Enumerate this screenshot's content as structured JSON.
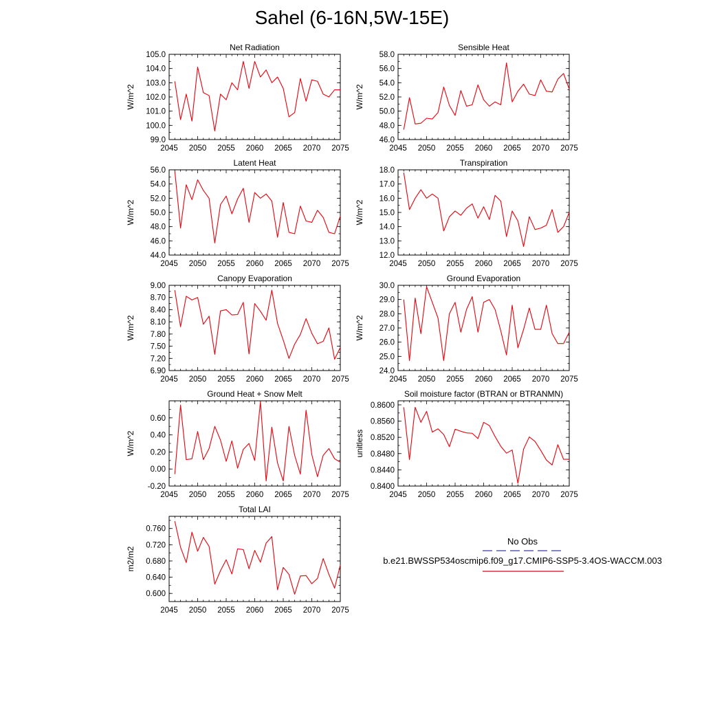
{
  "figure": {
    "title": "Sahel (6-16N,5W-15E)",
    "line_color": "#e8000b",
    "x_ticks": [
      "2045",
      "2050",
      "2055",
      "2060",
      "2065",
      "2070",
      "2075"
    ]
  },
  "legend": {
    "obs_label": "No Obs",
    "obs_color": "#3c3ca0",
    "case_label": "b.e21.BWSSP534oscmip6.f09_g17.CMIP6-SSP5-3.4OS-WACCM.003",
    "case_color": "#e8000b"
  },
  "chart_data": [
    {
      "type": "line",
      "title": "Net Radiation",
      "ylabel": "W/m^2",
      "xlim": [
        2045,
        2075
      ],
      "ylim": [
        99.0,
        105.0
      ],
      "yticks": [
        99.0,
        100.0,
        101.0,
        102.0,
        103.0,
        104.0,
        105.0
      ],
      "ytick_labels": [
        "99.0",
        "100.0",
        "101.0",
        "102.0",
        "103.0",
        "104.0",
        "105.0"
      ],
      "x": [
        2046,
        2047,
        2048,
        2049,
        2050,
        2051,
        2052,
        2053,
        2054,
        2055,
        2056,
        2057,
        2058,
        2059,
        2060,
        2061,
        2062,
        2063,
        2064,
        2065,
        2066,
        2067,
        2068,
        2069,
        2070,
        2071,
        2072,
        2073,
        2074,
        2075
      ],
      "values": [
        103.1,
        100.4,
        102.2,
        100.3,
        104.1,
        102.3,
        102.1,
        99.6,
        102.2,
        101.8,
        103.0,
        102.5,
        104.5,
        102.6,
        104.5,
        103.4,
        103.9,
        103.0,
        103.4,
        102.6,
        100.6,
        100.9,
        103.3,
        101.7,
        103.2,
        103.1,
        102.2,
        102.0,
        102.5,
        102.5
      ]
    },
    {
      "type": "line",
      "title": "Sensible Heat",
      "ylabel": "W/m^2",
      "xlim": [
        2045,
        2075
      ],
      "ylim": [
        46.0,
        58.0
      ],
      "yticks": [
        46.0,
        48.0,
        50.0,
        52.0,
        54.0,
        56.0,
        58.0
      ],
      "ytick_labels": [
        "46.0",
        "48.0",
        "50.0",
        "52.0",
        "54.0",
        "56.0",
        "58.0"
      ],
      "x": [
        2046,
        2047,
        2048,
        2049,
        2050,
        2051,
        2052,
        2053,
        2054,
        2055,
        2056,
        2057,
        2058,
        2059,
        2060,
        2061,
        2062,
        2063,
        2064,
        2065,
        2066,
        2067,
        2068,
        2069,
        2070,
        2071,
        2072,
        2073,
        2074,
        2075
      ],
      "values": [
        47.4,
        51.9,
        48.2,
        48.3,
        49.0,
        48.9,
        49.8,
        53.4,
        50.8,
        49.4,
        52.9,
        50.7,
        50.9,
        53.7,
        51.6,
        50.7,
        51.3,
        50.9,
        56.8,
        51.3,
        52.8,
        53.8,
        52.4,
        52.2,
        54.4,
        52.8,
        52.7,
        54.5,
        55.3,
        53.1
      ]
    },
    {
      "type": "line",
      "title": "Latent Heat",
      "ylabel": "W/m^2",
      "xlim": [
        2045,
        2075
      ],
      "ylim": [
        44.0,
        56.0
      ],
      "yticks": [
        44.0,
        46.0,
        48.0,
        50.0,
        52.0,
        54.0,
        56.0
      ],
      "ytick_labels": [
        "44.0",
        "46.0",
        "48.0",
        "50.0",
        "52.0",
        "54.0",
        "56.0"
      ],
      "x": [
        2046,
        2047,
        2048,
        2049,
        2050,
        2051,
        2052,
        2053,
        2054,
        2055,
        2056,
        2057,
        2058,
        2059,
        2060,
        2061,
        2062,
        2063,
        2064,
        2065,
        2066,
        2067,
        2068,
        2069,
        2070,
        2071,
        2072,
        2073,
        2074,
        2075
      ],
      "values": [
        55.8,
        47.8,
        53.9,
        51.8,
        54.6,
        53.1,
        52.0,
        45.7,
        51.1,
        52.3,
        49.8,
        51.9,
        53.4,
        48.6,
        52.8,
        52.0,
        52.6,
        51.6,
        46.5,
        51.4,
        47.2,
        47.0,
        50.9,
        48.8,
        48.6,
        50.3,
        49.3,
        47.2,
        47.0,
        49.5
      ]
    },
    {
      "type": "line",
      "title": "Transpiration",
      "ylabel": "W/m^2",
      "xlim": [
        2045,
        2075
      ],
      "ylim": [
        12.0,
        18.0
      ],
      "yticks": [
        12.0,
        13.0,
        14.0,
        15.0,
        16.0,
        17.0,
        18.0
      ],
      "ytick_labels": [
        "12.0",
        "13.0",
        "14.0",
        "15.0",
        "16.0",
        "17.0",
        "18.0"
      ],
      "x": [
        2046,
        2047,
        2048,
        2049,
        2050,
        2051,
        2052,
        2053,
        2054,
        2055,
        2056,
        2057,
        2058,
        2059,
        2060,
        2061,
        2062,
        2063,
        2064,
        2065,
        2066,
        2067,
        2068,
        2069,
        2070,
        2071,
        2072,
        2073,
        2074,
        2075
      ],
      "values": [
        17.8,
        15.2,
        16.0,
        16.6,
        16.0,
        16.3,
        16.0,
        13.7,
        14.7,
        15.1,
        14.8,
        15.3,
        15.6,
        14.6,
        15.4,
        14.5,
        16.2,
        15.8,
        13.3,
        15.1,
        14.4,
        12.6,
        14.7,
        13.8,
        13.9,
        14.1,
        15.2,
        13.6,
        14.0,
        15.0
      ]
    },
    {
      "type": "line",
      "title": "Canopy Evaporation",
      "ylabel": "W/m^2",
      "xlim": [
        2045,
        2075
      ],
      "ylim": [
        6.9,
        9.0
      ],
      "yticks": [
        6.9,
        7.2,
        7.5,
        7.8,
        8.1,
        8.4,
        8.7,
        9.0
      ],
      "ytick_labels": [
        "6.90",
        "7.20",
        "7.50",
        "7.80",
        "8.10",
        "8.40",
        "8.70",
        "9.00"
      ],
      "x": [
        2046,
        2047,
        2048,
        2049,
        2050,
        2051,
        2052,
        2053,
        2054,
        2055,
        2056,
        2057,
        2058,
        2059,
        2060,
        2061,
        2062,
        2063,
        2064,
        2065,
        2066,
        2067,
        2068,
        2069,
        2070,
        2071,
        2072,
        2073,
        2074,
        2075
      ],
      "values": [
        8.88,
        7.98,
        8.73,
        8.64,
        8.7,
        8.04,
        8.24,
        7.3,
        8.37,
        8.4,
        8.27,
        8.28,
        8.58,
        7.31,
        8.55,
        8.36,
        8.14,
        8.88,
        8.06,
        7.65,
        7.2,
        7.55,
        7.79,
        8.18,
        7.82,
        7.56,
        7.62,
        7.95,
        7.18,
        7.47
      ]
    },
    {
      "type": "line",
      "title": "Ground Evaporation",
      "ylabel": "W/m^2",
      "xlim": [
        2045,
        2075
      ],
      "ylim": [
        24.0,
        30.0
      ],
      "yticks": [
        24.0,
        25.0,
        26.0,
        27.0,
        28.0,
        29.0,
        30.0
      ],
      "ytick_labels": [
        "24.0",
        "25.0",
        "26.0",
        "27.0",
        "28.0",
        "29.0",
        "30.0"
      ],
      "x": [
        2046,
        2047,
        2048,
        2049,
        2050,
        2051,
        2052,
        2053,
        2054,
        2055,
        2056,
        2057,
        2058,
        2059,
        2060,
        2061,
        2062,
        2063,
        2064,
        2065,
        2066,
        2067,
        2068,
        2069,
        2070,
        2071,
        2072,
        2073,
        2074,
        2075
      ],
      "values": [
        29.0,
        24.7,
        29.1,
        26.6,
        29.9,
        28.8,
        27.7,
        24.7,
        28.0,
        28.8,
        26.7,
        28.3,
        29.2,
        26.7,
        28.8,
        29.0,
        28.3,
        26.8,
        25.1,
        28.6,
        25.6,
        26.9,
        28.4,
        26.9,
        26.9,
        28.6,
        26.6,
        25.9,
        25.9,
        26.7
      ]
    },
    {
      "type": "line",
      "title": "Ground Heat + Snow Melt",
      "ylabel": "W/m^2",
      "xlim": [
        2045,
        2075
      ],
      "ylim": [
        -0.2,
        0.8
      ],
      "yticks": [
        -0.2,
        0.0,
        0.2,
        0.4,
        0.6
      ],
      "ytick_labels": [
        "-0.20",
        "0.00",
        "0.20",
        "0.40",
        "0.60"
      ],
      "x": [
        2046,
        2047,
        2048,
        2049,
        2050,
        2051,
        2052,
        2053,
        2054,
        2055,
        2056,
        2057,
        2058,
        2059,
        2060,
        2061,
        2062,
        2063,
        2064,
        2065,
        2066,
        2067,
        2068,
        2069,
        2070,
        2071,
        2072,
        2073,
        2074,
        2075
      ],
      "values": [
        -0.06,
        0.75,
        0.11,
        0.12,
        0.44,
        0.11,
        0.24,
        0.5,
        0.34,
        0.09,
        0.33,
        0.01,
        0.23,
        0.3,
        0.1,
        0.79,
        -0.14,
        0.49,
        0.07,
        -0.14,
        0.5,
        0.16,
        -0.06,
        0.69,
        0.17,
        -0.09,
        0.16,
        0.24,
        0.12,
        0.08
      ]
    },
    {
      "type": "line",
      "title": "Soil moisture factor (BTRAN or BTRANMN)",
      "ylabel": "unitless",
      "xlim": [
        2045,
        2075
      ],
      "ylim": [
        0.84,
        0.861
      ],
      "yticks": [
        0.84,
        0.844,
        0.848,
        0.852,
        0.856,
        0.86
      ],
      "ytick_labels": [
        "0.8400",
        "0.8440",
        "0.8480",
        "0.8520",
        "0.8560",
        "0.8600"
      ],
      "x": [
        2046,
        2047,
        2048,
        2049,
        2050,
        2051,
        2052,
        2053,
        2054,
        2055,
        2056,
        2057,
        2058,
        2059,
        2060,
        2061,
        2062,
        2063,
        2064,
        2065,
        2066,
        2067,
        2068,
        2069,
        2070,
        2071,
        2072,
        2073,
        2074,
        2075
      ],
      "values": [
        0.8594,
        0.8465,
        0.8594,
        0.8557,
        0.8584,
        0.8533,
        0.8541,
        0.8527,
        0.8497,
        0.854,
        0.8535,
        0.8531,
        0.853,
        0.8517,
        0.8557,
        0.8549,
        0.8522,
        0.8498,
        0.8481,
        0.8489,
        0.8407,
        0.8491,
        0.8521,
        0.851,
        0.8488,
        0.8464,
        0.8452,
        0.8502,
        0.8466,
        0.8466
      ]
    },
    {
      "type": "line",
      "title": "Total LAI",
      "ylabel": "m2/m2",
      "xlim": [
        2045,
        2075
      ],
      "ylim": [
        0.58,
        0.79
      ],
      "yticks": [
        0.6,
        0.64,
        0.68,
        0.72,
        0.76
      ],
      "ytick_labels": [
        "0.600",
        "0.640",
        "0.680",
        "0.720",
        "0.760"
      ],
      "x": [
        2046,
        2047,
        2048,
        2049,
        2050,
        2051,
        2052,
        2053,
        2054,
        2055,
        2056,
        2057,
        2058,
        2059,
        2060,
        2061,
        2062,
        2063,
        2064,
        2065,
        2066,
        2067,
        2068,
        2069,
        2070,
        2071,
        2072,
        2073,
        2074,
        2075
      ],
      "values": [
        0.778,
        0.714,
        0.676,
        0.751,
        0.704,
        0.738,
        0.716,
        0.623,
        0.656,
        0.683,
        0.648,
        0.71,
        0.708,
        0.661,
        0.706,
        0.677,
        0.724,
        0.74,
        0.609,
        0.664,
        0.647,
        0.598,
        0.643,
        0.644,
        0.624,
        0.637,
        0.686,
        0.647,
        0.613,
        0.67
      ]
    }
  ]
}
